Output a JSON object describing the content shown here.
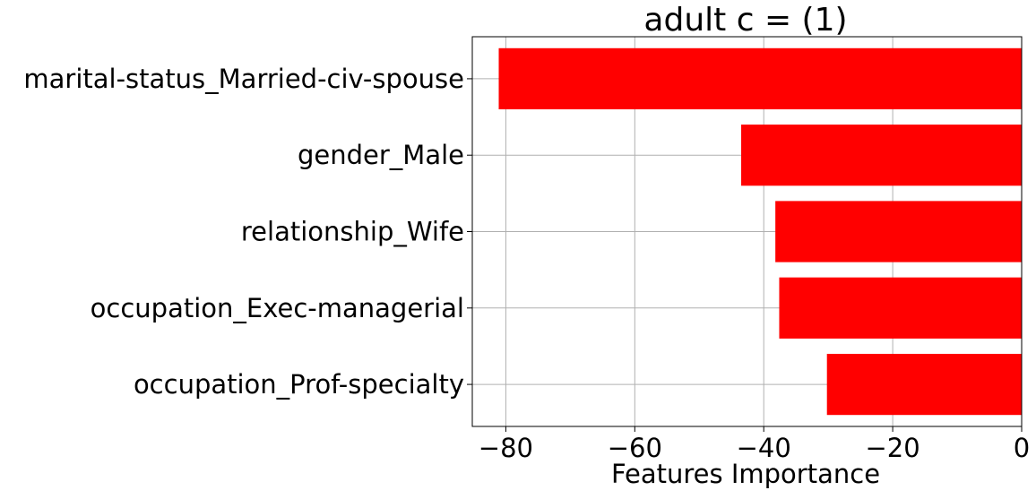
{
  "chart_data": {
    "type": "bar",
    "orientation": "horizontal",
    "title": "adult c = (1)",
    "xlabel": "Features Importance",
    "ylabel": "",
    "categories": [
      "marital-status_Married-civ-spouse",
      "gender_Male",
      "relationship_Wife",
      "occupation_Exec-managerial",
      "occupation_Prof-specialty"
    ],
    "values": [
      -81.1,
      -43.5,
      -38.2,
      -37.6,
      -30.2
    ],
    "xlim": [
      -85.2,
      0
    ],
    "xticks": [
      -80,
      -60,
      -40,
      -20,
      0
    ],
    "xtick_labels": [
      "−80",
      "−60",
      "−40",
      "−20",
      "0"
    ],
    "bar_color": "#ff0000",
    "grid": true,
    "legend": "none"
  }
}
